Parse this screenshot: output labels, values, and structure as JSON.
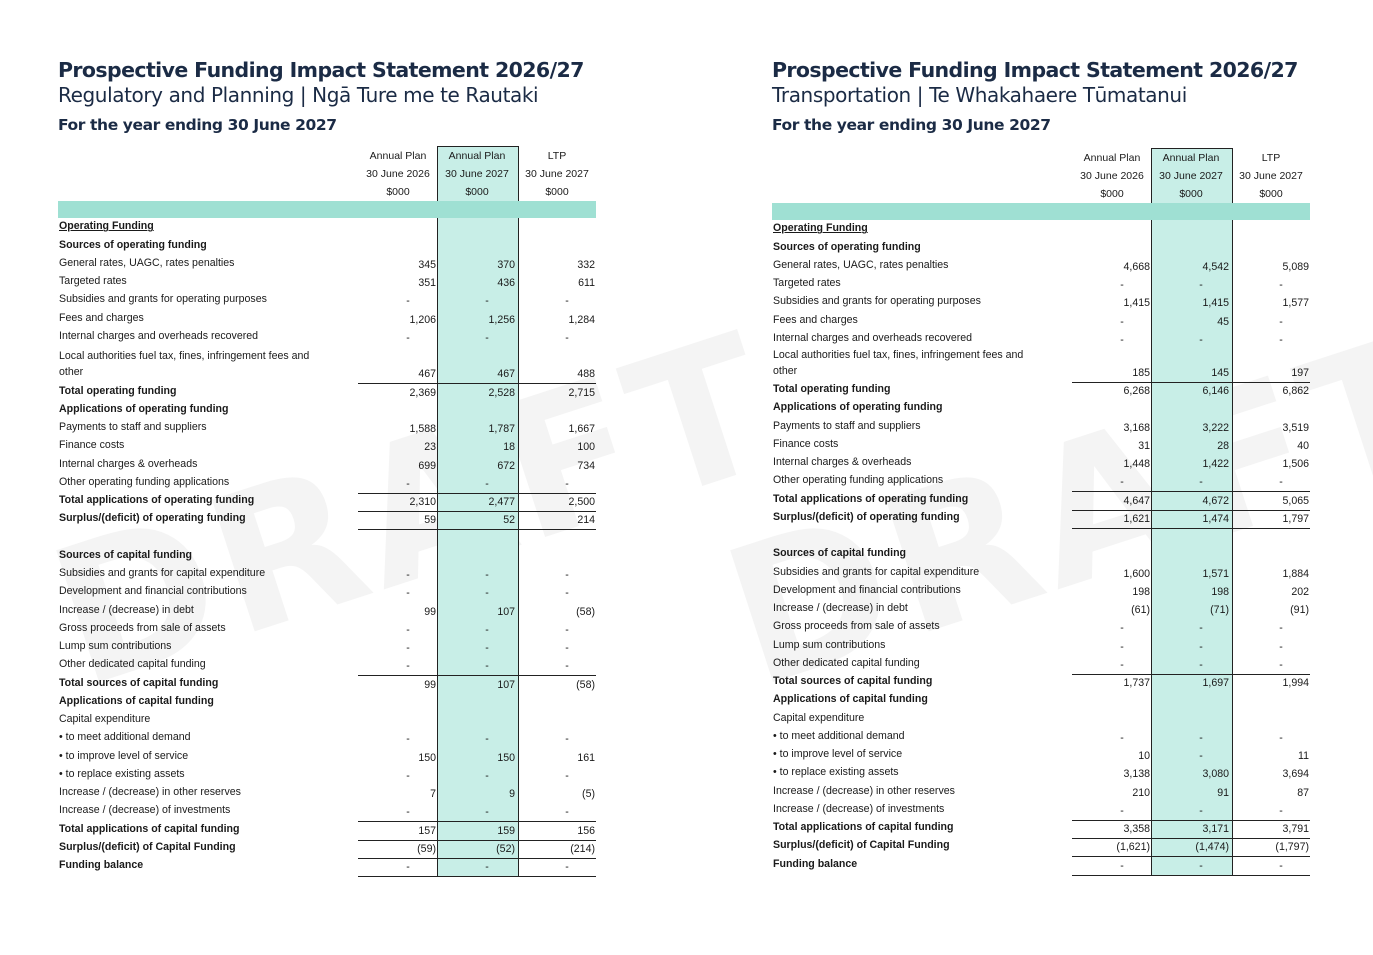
{
  "panels": [
    {
      "title": "Prospective Funding Impact Statement 2026/27",
      "subtitle": "Regulatory and Planning | Ngā Ture me te Rautaki",
      "period": "For the year ending 30 June 2027",
      "watermark": "DRAFT",
      "columns": [
        {
          "line1": "Annual Plan",
          "line2": "30 June 2026",
          "line3": "$000"
        },
        {
          "line1": "Annual Plan",
          "line2": "30 June 2027",
          "line3": "$000"
        },
        {
          "line1": "LTP",
          "line2": "30 June 2027",
          "line3": "$000"
        }
      ],
      "rows": [
        {
          "label": "Operating Funding",
          "style": "u",
          "values": [
            "",
            "",
            ""
          ]
        },
        {
          "label": "Sources of operating funding",
          "style": "b",
          "values": [
            "",
            "",
            ""
          ]
        },
        {
          "label": "General rates, UAGC, rates penalties",
          "style": "",
          "values": [
            "345",
            "370",
            "332"
          ]
        },
        {
          "label": "Targeted rates",
          "style": "",
          "values": [
            "351",
            "436",
            "611"
          ]
        },
        {
          "label": "Subsidies and grants for operating purposes",
          "style": "",
          "values": [
            "-",
            "-",
            "-"
          ]
        },
        {
          "label": "Fees and charges",
          "style": "",
          "values": [
            "1,206",
            "1,256",
            "1,284"
          ]
        },
        {
          "label": "Internal charges and overheads recovered",
          "style": "",
          "values": [
            "-",
            "-",
            "-"
          ]
        },
        {
          "label": "Local authorities fuel tax, fines, infringement fees and other",
          "style": "tall",
          "values": [
            "467",
            "467",
            "488"
          ]
        },
        {
          "label": "Total operating funding",
          "style": "b",
          "values": [
            "2,369",
            "2,528",
            "2,715"
          ],
          "rule_above": true
        },
        {
          "label": "Applications of operating funding",
          "style": "b",
          "values": [
            "",
            "",
            ""
          ]
        },
        {
          "label": "Payments to staff and suppliers",
          "style": "",
          "values": [
            "1,588",
            "1,787",
            "1,667"
          ]
        },
        {
          "label": "Finance costs",
          "style": "",
          "values": [
            "23",
            "18",
            "100"
          ]
        },
        {
          "label": "Internal charges & overheads",
          "style": "",
          "values": [
            "699",
            "672",
            "734"
          ]
        },
        {
          "label": "Other operating funding applications",
          "style": "",
          "values": [
            "-",
            "-",
            "-"
          ]
        },
        {
          "label": "Total applications of operating funding",
          "style": "b",
          "values": [
            "2,310",
            "2,477",
            "2,500"
          ],
          "rule_above": true
        },
        {
          "label": "Surplus/(deficit) of operating funding",
          "style": "b",
          "values": [
            "59",
            "52",
            "214"
          ],
          "rule_above": true,
          "rule_below": true
        },
        {
          "label": "",
          "style": "",
          "values": [
            "",
            "",
            ""
          ]
        },
        {
          "label": "Sources of capital funding",
          "style": "b",
          "values": [
            "",
            "",
            ""
          ]
        },
        {
          "label": "Subsidies and grants for capital expenditure",
          "style": "",
          "values": [
            "-",
            "-",
            "-"
          ]
        },
        {
          "label": "Development and financial contributions",
          "style": "",
          "values": [
            "-",
            "-",
            "-"
          ]
        },
        {
          "label": "Increase / (decrease) in debt",
          "style": "",
          "values": [
            "99",
            "107",
            "(58)"
          ]
        },
        {
          "label": "Gross proceeds from sale of assets",
          "style": "",
          "values": [
            "-",
            "-",
            "-"
          ]
        },
        {
          "label": "Lump sum contributions",
          "style": "",
          "values": [
            "-",
            "-",
            "-"
          ]
        },
        {
          "label": "Other dedicated capital funding",
          "style": "",
          "values": [
            "-",
            "-",
            "-"
          ]
        },
        {
          "label": "Total sources of capital funding",
          "style": "b",
          "values": [
            "99",
            "107",
            "(58)"
          ],
          "rule_above": true
        },
        {
          "label": "Applications of capital funding",
          "style": "b",
          "values": [
            "",
            "",
            ""
          ]
        },
        {
          "label": "Capital expenditure",
          "style": "",
          "values": [
            "",
            "",
            ""
          ]
        },
        {
          "label": "• to meet additional demand",
          "style": "",
          "values": [
            "-",
            "-",
            "-"
          ]
        },
        {
          "label": "• to improve level of service",
          "style": "",
          "values": [
            "150",
            "150",
            "161"
          ]
        },
        {
          "label": "• to replace existing assets",
          "style": "",
          "values": [
            "-",
            "-",
            "-"
          ]
        },
        {
          "label": "Increase / (decrease) in other reserves",
          "style": "",
          "values": [
            "7",
            "9",
            "(5)"
          ]
        },
        {
          "label": "Increase / (decrease) of investments",
          "style": "",
          "values": [
            "-",
            "-",
            "-"
          ]
        },
        {
          "label": "Total applications of capital funding",
          "style": "b",
          "values": [
            "157",
            "159",
            "156"
          ],
          "rule_above": true
        },
        {
          "label": "Surplus/(deficit) of Capital Funding",
          "style": "b",
          "values": [
            "(59)",
            "(52)",
            "(214)"
          ],
          "rule_above": true
        },
        {
          "label": "Funding balance",
          "style": "b",
          "values": [
            "-",
            "-",
            "-"
          ],
          "rule_above": true,
          "rule_below": true
        }
      ]
    },
    {
      "title": "Prospective Funding Impact Statement 2026/27",
      "subtitle": "Transportation | Te Whakahaere Tūmatanui",
      "period": "For the year ending 30 June 2027",
      "watermark": "DRAFT",
      "columns": [
        {
          "line1": "Annual Plan",
          "line2": "30 June 2026",
          "line3": "$000"
        },
        {
          "line1": "Annual Plan",
          "line2": "30 June 2027",
          "line3": "$000"
        },
        {
          "line1": "LTP",
          "line2": "30 June 2027",
          "line3": "$000"
        }
      ],
      "rows": [
        {
          "label": "Operating Funding",
          "style": "u",
          "values": [
            "",
            "",
            ""
          ]
        },
        {
          "label": "Sources of operating funding",
          "style": "b",
          "values": [
            "",
            "",
            ""
          ]
        },
        {
          "label": "General rates, UAGC, rates penalties",
          "style": "",
          "values": [
            "4,668",
            "4,542",
            "5,089"
          ]
        },
        {
          "label": "Targeted rates",
          "style": "",
          "values": [
            "-",
            "-",
            "-"
          ]
        },
        {
          "label": "Subsidies and grants for operating purposes",
          "style": "",
          "values": [
            "1,415",
            "1,415",
            "1,577"
          ]
        },
        {
          "label": "Fees and charges",
          "style": "",
          "values": [
            "-",
            "45",
            "-"
          ]
        },
        {
          "label": "Internal charges and overheads recovered",
          "style": "",
          "values": [
            "-",
            "-",
            "-"
          ]
        },
        {
          "label": "Local authorities fuel tax, fines, infringement fees and other",
          "style": "tall2",
          "values": [
            "185",
            "145",
            "197"
          ]
        },
        {
          "label": "Total operating funding",
          "style": "b",
          "values": [
            "6,268",
            "6,146",
            "6,862"
          ],
          "rule_above": true
        },
        {
          "label": "Applications of operating funding",
          "style": "b",
          "values": [
            "",
            "",
            ""
          ]
        },
        {
          "label": "Payments to staff and suppliers",
          "style": "",
          "values": [
            "3,168",
            "3,222",
            "3,519"
          ]
        },
        {
          "label": "Finance costs",
          "style": "",
          "values": [
            "31",
            "28",
            "40"
          ]
        },
        {
          "label": "Internal charges & overheads",
          "style": "",
          "values": [
            "1,448",
            "1,422",
            "1,506"
          ]
        },
        {
          "label": "Other operating funding applications",
          "style": "",
          "values": [
            "-",
            "-",
            "-"
          ]
        },
        {
          "label": "Total applications of operating funding",
          "style": "b",
          "values": [
            "4,647",
            "4,672",
            "5,065"
          ],
          "rule_above": true
        },
        {
          "label": "Surplus/(deficit) of operating funding",
          "style": "b",
          "values": [
            "1,621",
            "1,474",
            "1,797"
          ],
          "rule_above": true,
          "rule_below": true
        },
        {
          "label": "",
          "style": "",
          "values": [
            "",
            "",
            ""
          ]
        },
        {
          "label": "Sources of capital funding",
          "style": "b",
          "values": [
            "",
            "",
            ""
          ]
        },
        {
          "label": "Subsidies and grants for capital expenditure",
          "style": "",
          "values": [
            "1,600",
            "1,571",
            "1,884"
          ]
        },
        {
          "label": "Development and financial contributions",
          "style": "",
          "values": [
            "198",
            "198",
            "202"
          ]
        },
        {
          "label": "Increase / (decrease) in debt",
          "style": "",
          "values": [
            "(61)",
            "(71)",
            "(91)"
          ]
        },
        {
          "label": "Gross proceeds from sale of assets",
          "style": "",
          "values": [
            "-",
            "-",
            "-"
          ]
        },
        {
          "label": "Lump sum contributions",
          "style": "",
          "values": [
            "-",
            "-",
            "-"
          ]
        },
        {
          "label": "Other dedicated capital funding",
          "style": "",
          "values": [
            "-",
            "-",
            "-"
          ]
        },
        {
          "label": "Total sources of capital funding",
          "style": "b",
          "values": [
            "1,737",
            "1,697",
            "1,994"
          ],
          "rule_above": true
        },
        {
          "label": "Applications of capital funding",
          "style": "b",
          "values": [
            "",
            "",
            ""
          ]
        },
        {
          "label": "Capital expenditure",
          "style": "",
          "values": [
            "",
            "",
            ""
          ]
        },
        {
          "label": "• to meet additional demand",
          "style": "",
          "values": [
            "-",
            "-",
            "-"
          ]
        },
        {
          "label": "• to improve level of service",
          "style": "",
          "values": [
            "10",
            "-",
            "11"
          ]
        },
        {
          "label": "• to replace existing assets",
          "style": "",
          "values": [
            "3,138",
            "3,080",
            "3,694"
          ]
        },
        {
          "label": "Increase / (decrease) in other reserves",
          "style": "",
          "values": [
            "210",
            "91",
            "87"
          ]
        },
        {
          "label": "Increase / (decrease) of investments",
          "style": "",
          "values": [
            "-",
            "-",
            "-"
          ]
        },
        {
          "label": "Total applications of capital funding",
          "style": "b",
          "values": [
            "3,358",
            "3,171",
            "3,791"
          ],
          "rule_above": true
        },
        {
          "label": "Surplus/(deficit) of Capital Funding",
          "style": "b",
          "values": [
            "(1,621)",
            "(1,474)",
            "(1,797)"
          ],
          "rule_above": true
        },
        {
          "label": "Funding balance",
          "style": "b",
          "values": [
            "-",
            "-",
            "-"
          ],
          "rule_above": true,
          "rule_below": true
        }
      ]
    }
  ]
}
